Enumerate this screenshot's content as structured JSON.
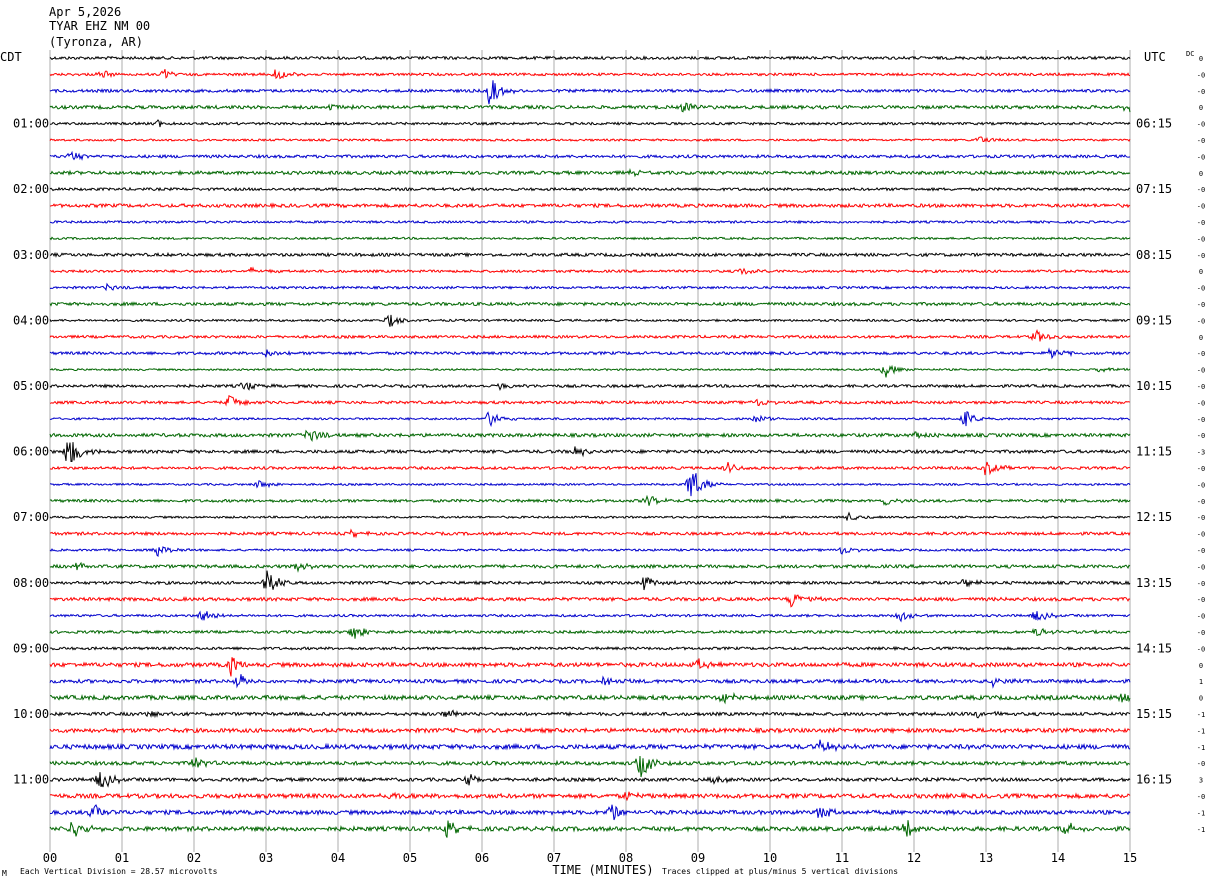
{
  "header": {
    "date": "Apr 5,2026",
    "station": "TYAR EHZ NM 00",
    "location": "(Tyronza, AR)"
  },
  "labels": {
    "left_tz": "CDT",
    "right_tz": "UTC",
    "dc": "DC"
  },
  "footer": {
    "xlabel": "TIME (MINUTES)",
    "scale_note": "Each Vertical Division =   28.57 microvolts",
    "clip_note": "Traces clipped at plus/minus 5 vertical divisions"
  },
  "colors": {
    "traces": [
      "#000000",
      "#ff0000",
      "#0000cc",
      "#006600"
    ],
    "grid": "#9a9a9a"
  },
  "chart_data": {
    "type": "line",
    "subtype": "helicorder",
    "xlim": [
      0,
      15
    ],
    "x_ticks": [
      "00",
      "01",
      "02",
      "03",
      "04",
      "05",
      "06",
      "07",
      "08",
      "09",
      "10",
      "11",
      "12",
      "13",
      "14",
      "15"
    ],
    "rows_per_hour": 4,
    "row_count": 48,
    "left_time_labels": [
      "01:00",
      "02:00",
      "03:00",
      "04:00",
      "05:00",
      "06:00",
      "07:00",
      "08:00",
      "09:00",
      "10:00",
      "11:00"
    ],
    "right_time_labels": [
      "06:15",
      "07:15",
      "08:15",
      "09:15",
      "10:15",
      "11:15",
      "12:15",
      "13:15",
      "14:15",
      "15:15",
      "16:15"
    ],
    "dc_values": [
      "0",
      "-0",
      "-0",
      "0",
      "-0",
      "-0",
      "-0",
      "0",
      "-0",
      "-0",
      "-0",
      "-0",
      "-0",
      "0",
      "-0",
      "-0",
      "-0",
      "0",
      "-0",
      "-0",
      "-0",
      "-0",
      "-0",
      "-0",
      "-3",
      "-0",
      "-0",
      "-0",
      "-0",
      "-0",
      "-0",
      "-0",
      "-0",
      "-0",
      "-0",
      "-0",
      "-0",
      "0",
      "1",
      "0",
      "-1",
      "-1",
      "-1",
      "-0",
      "3",
      "-0",
      "-1",
      "-1"
    ],
    "events": [
      {
        "row": 1,
        "minute": 0.7,
        "amp": 0.5
      },
      {
        "row": 1,
        "minute": 1.6,
        "amp": 0.5
      },
      {
        "row": 1,
        "minute": 3.15,
        "amp": 0.8
      },
      {
        "row": 2,
        "minute": 6.1,
        "amp": 1.6
      },
      {
        "row": 3,
        "minute": 3.9,
        "amp": 0.4
      },
      {
        "row": 3,
        "minute": 8.8,
        "amp": 0.8
      },
      {
        "row": 3,
        "minute": 14.95,
        "amp": 0.6
      },
      {
        "row": 4,
        "minute": 1.5,
        "amp": 0.4
      },
      {
        "row": 5,
        "minute": 12.9,
        "amp": 0.5
      },
      {
        "row": 6,
        "minute": 0.3,
        "amp": 0.6
      },
      {
        "row": 7,
        "minute": 8.1,
        "amp": 0.4
      },
      {
        "row": 13,
        "minute": 2.8,
        "amp": 0.4
      },
      {
        "row": 13,
        "minute": 9.6,
        "amp": 0.5
      },
      {
        "row": 14,
        "minute": 0.8,
        "amp": 0.4
      },
      {
        "row": 16,
        "minute": 4.7,
        "amp": 0.8
      },
      {
        "row": 17,
        "minute": 13.7,
        "amp": 0.8
      },
      {
        "row": 18,
        "minute": 3.0,
        "amp": 0.5
      },
      {
        "row": 18,
        "minute": 13.9,
        "amp": 0.7
      },
      {
        "row": 19,
        "minute": 11.6,
        "amp": 0.9
      },
      {
        "row": 19,
        "minute": 14.6,
        "amp": 0.5
      },
      {
        "row": 20,
        "minute": 2.7,
        "amp": 0.6
      },
      {
        "row": 20,
        "minute": 6.25,
        "amp": 0.5
      },
      {
        "row": 21,
        "minute": 2.5,
        "amp": 0.9
      },
      {
        "row": 21,
        "minute": 9.8,
        "amp": 0.5
      },
      {
        "row": 22,
        "minute": 6.1,
        "amp": 1.0
      },
      {
        "row": 22,
        "minute": 9.8,
        "amp": 0.6
      },
      {
        "row": 22,
        "minute": 12.7,
        "amp": 1.0
      },
      {
        "row": 23,
        "minute": 3.6,
        "amp": 0.9
      },
      {
        "row": 23,
        "minute": 12.0,
        "amp": 0.6
      },
      {
        "row": 24,
        "minute": 0.25,
        "amp": 2.0
      },
      {
        "row": 24,
        "minute": 7.3,
        "amp": 0.6
      },
      {
        "row": 25,
        "minute": 9.4,
        "amp": 0.7
      },
      {
        "row": 25,
        "minute": 13.0,
        "amp": 0.8
      },
      {
        "row": 26,
        "minute": 8.9,
        "amp": 2.0
      },
      {
        "row": 26,
        "minute": 2.9,
        "amp": 0.5
      },
      {
        "row": 27,
        "minute": 8.3,
        "amp": 0.6
      },
      {
        "row": 27,
        "minute": 11.6,
        "amp": 0.6
      },
      {
        "row": 28,
        "minute": 11.1,
        "amp": 0.6
      },
      {
        "row": 29,
        "minute": 4.2,
        "amp": 0.4
      },
      {
        "row": 30,
        "minute": 1.5,
        "amp": 0.6
      },
      {
        "row": 30,
        "minute": 11.0,
        "amp": 0.5
      },
      {
        "row": 31,
        "minute": 0.4,
        "amp": 0.6
      },
      {
        "row": 31,
        "minute": 3.45,
        "amp": 0.6
      },
      {
        "row": 32,
        "minute": 3.0,
        "amp": 1.5
      },
      {
        "row": 32,
        "minute": 8.25,
        "amp": 0.9
      },
      {
        "row": 32,
        "minute": 12.7,
        "amp": 0.6
      },
      {
        "row": 33,
        "minute": 10.3,
        "amp": 1.0
      },
      {
        "row": 34,
        "minute": 2.1,
        "amp": 0.8
      },
      {
        "row": 34,
        "minute": 11.8,
        "amp": 0.8
      },
      {
        "row": 34,
        "minute": 13.7,
        "amp": 0.7
      },
      {
        "row": 35,
        "minute": 4.2,
        "amp": 0.9
      },
      {
        "row": 35,
        "minute": 13.7,
        "amp": 0.6
      },
      {
        "row": 37,
        "minute": 2.5,
        "amp": 1.2
      },
      {
        "row": 37,
        "minute": 9.0,
        "amp": 0.6
      },
      {
        "row": 38,
        "minute": 2.6,
        "amp": 0.9
      },
      {
        "row": 38,
        "minute": 7.7,
        "amp": 0.7
      },
      {
        "row": 38,
        "minute": 13.1,
        "amp": 0.6
      },
      {
        "row": 39,
        "minute": 9.35,
        "amp": 0.8
      },
      {
        "row": 39,
        "minute": 14.9,
        "amp": 0.7
      },
      {
        "row": 40,
        "minute": 1.3,
        "amp": 0.6
      },
      {
        "row": 40,
        "minute": 5.5,
        "amp": 0.6
      },
      {
        "row": 40,
        "minute": 12.9,
        "amp": 0.5
      },
      {
        "row": 42,
        "minute": 10.7,
        "amp": 0.8
      },
      {
        "row": 43,
        "minute": 2.0,
        "amp": 0.9
      },
      {
        "row": 43,
        "minute": 8.2,
        "amp": 1.6
      },
      {
        "row": 44,
        "minute": 0.7,
        "amp": 1.2
      },
      {
        "row": 44,
        "minute": 5.8,
        "amp": 0.8
      },
      {
        "row": 44,
        "minute": 9.2,
        "amp": 0.7
      },
      {
        "row": 45,
        "minute": 4.6,
        "amp": 0.6
      },
      {
        "row": 45,
        "minute": 8.0,
        "amp": 0.6
      },
      {
        "row": 46,
        "minute": 0.6,
        "amp": 1.0
      },
      {
        "row": 46,
        "minute": 7.8,
        "amp": 1.0
      },
      {
        "row": 46,
        "minute": 10.7,
        "amp": 0.8
      },
      {
        "row": 47,
        "minute": 0.3,
        "amp": 1.2
      },
      {
        "row": 47,
        "minute": 5.5,
        "amp": 1.0
      },
      {
        "row": 47,
        "minute": 11.9,
        "amp": 0.9
      },
      {
        "row": 47,
        "minute": 14.1,
        "amp": 0.8
      }
    ]
  }
}
